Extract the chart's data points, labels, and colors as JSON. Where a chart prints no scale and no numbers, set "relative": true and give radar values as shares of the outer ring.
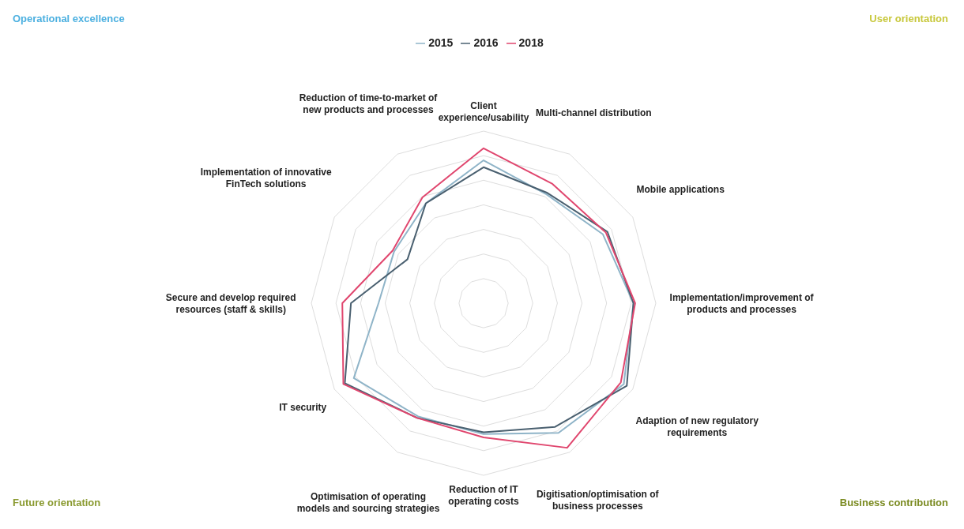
{
  "chart_data": {
    "type": "radar",
    "relative": true,
    "legend": "top",
    "grid": true,
    "categories": [
      "Client experience/usability",
      "Multi-channel distribution",
      "Mobile applications",
      "Implementation/improvement of products and processes",
      "Adaption of new regulatory requirements",
      "Digitisation/optimisation of business processes",
      "Reduction of IT operating costs",
      "Optimisation of operating models and sourcing strategies",
      "IT security",
      "Secure and develop required resources (staff & skills)",
      "Implementation of innovative FinTech solutions",
      "Reduction of time-to-market of new products and processes"
    ],
    "series": [
      {
        "name": "2015",
        "color": "#8fb4c8",
        "values": [
          0.83,
          0.73,
          0.8,
          0.87,
          0.94,
          0.87,
          0.76,
          0.76,
          0.87,
          0.61,
          0.6,
          0.67
        ]
      },
      {
        "name": "2016",
        "color": "#4a6070",
        "values": [
          0.79,
          0.74,
          0.83,
          0.87,
          0.96,
          0.83,
          0.75,
          0.77,
          0.93,
          0.77,
          0.51,
          0.67
        ]
      },
      {
        "name": "2018",
        "color": "#e0466e",
        "values": [
          0.9,
          0.8,
          0.82,
          0.88,
          0.92,
          0.97,
          0.78,
          0.77,
          0.94,
          0.82,
          0.61,
          0.71
        ]
      }
    ],
    "annotations": [
      "Operational excellence",
      "User orientation",
      "Future orientation",
      "Business contribution"
    ]
  }
}
